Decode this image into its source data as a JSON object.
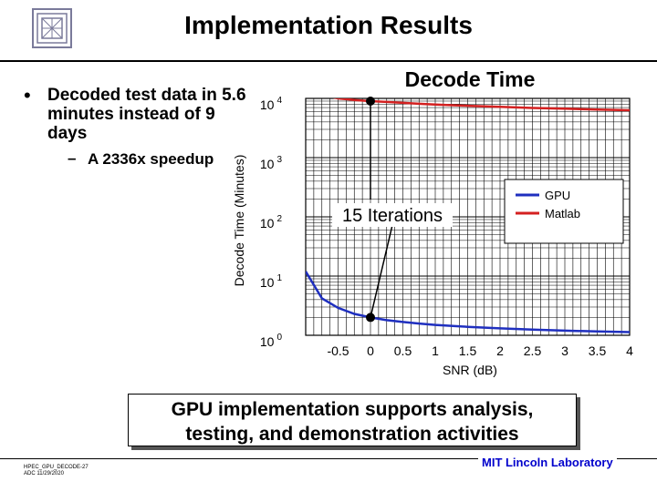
{
  "slide": {
    "title": "Implementation Results",
    "bullet": "Decoded test data in 5.6 minutes instead of 9 days",
    "sub_dash": "–",
    "sub_bullet": "A 2336x speedup",
    "callout": "GPU implementation supports analysis, testing, and demonstration activities",
    "footer_code": "HPEC_GPU_DECODE-27",
    "footer_date": "ADC 11/29/2020",
    "lab_name": "MIT Lincoln Laboratory"
  },
  "chart_data": {
    "type": "line",
    "title": "Decode Time",
    "xlabel": "SNR (dB)",
    "ylabel": "Decode Time (Minutes)",
    "yscale": "log",
    "xlim": [
      -1,
      4
    ],
    "ylim": [
      1,
      10000
    ],
    "x_ticks": [
      "-0.5",
      "0",
      "0.5",
      "1",
      "1.5",
      "2",
      "2.5",
      "3",
      "3.5",
      "4"
    ],
    "x_tick_values": [
      -0.5,
      0,
      0.5,
      1,
      1.5,
      2,
      2.5,
      3,
      3.5,
      4
    ],
    "y_ticks": [
      {
        "base": "10",
        "exp": "0"
      },
      {
        "base": "10",
        "exp": "1"
      },
      {
        "base": "10",
        "exp": "2"
      },
      {
        "base": "10",
        "exp": "3"
      },
      {
        "base": "10",
        "exp": "4"
      }
    ],
    "grid": true,
    "legend_position": "top-right",
    "series": [
      {
        "name": "GPU",
        "color": "#1f2fbf",
        "x": [
          -1,
          -0.75,
          -0.5,
          -0.25,
          0,
          0.25,
          0.5,
          0.75,
          1,
          1.5,
          2,
          2.5,
          3,
          3.5,
          4
        ],
        "y": [
          12,
          4.2,
          2.9,
          2.3,
          2.0,
          1.8,
          1.68,
          1.58,
          1.5,
          1.39,
          1.31,
          1.25,
          1.2,
          1.16,
          1.13
        ]
      },
      {
        "name": "Matlab",
        "color": "#d42020",
        "x": [
          -1,
          -0.75,
          -0.5,
          -0.25,
          0,
          0.25,
          0.5,
          0.75,
          1,
          1.5,
          2,
          2.5,
          3,
          3.5,
          4
        ],
        "y": [
          15000,
          11500,
          10000,
          9400,
          9000,
          8700,
          8400,
          8100,
          7900,
          7500,
          7200,
          6900,
          6700,
          6500,
          6300
        ]
      }
    ],
    "annotation": {
      "text": "15 Iterations",
      "points": [
        {
          "x": 0,
          "y": 9000
        },
        {
          "x": 0,
          "y": 2.0
        }
      ]
    }
  }
}
